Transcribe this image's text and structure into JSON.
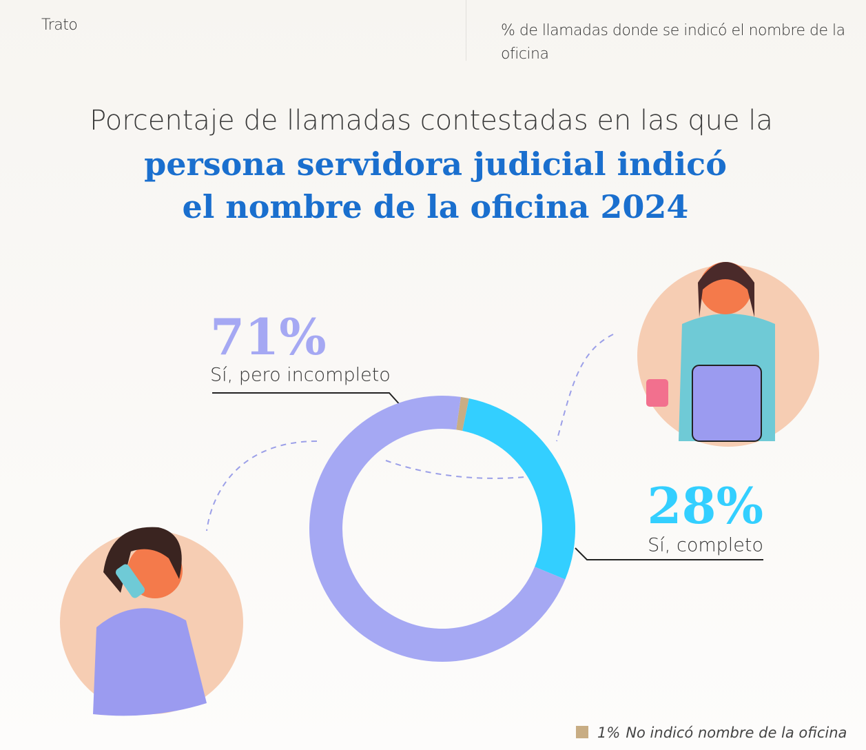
{
  "header": {
    "section": "Trato",
    "description": "% de llamadas donde se indicó el nombre de la oficina"
  },
  "chart_data": {
    "type": "donut",
    "title": [
      "Porcentaje de llamadas contestadas en las que la",
      "persona servidora judicial indicó",
      "el nombre de la oficina 2024"
    ],
    "categories": [
      "Sí, pero incompleto",
      "Sí, completo",
      "No indicó nombre de la oficina"
    ],
    "values": [
      71,
      28,
      1
    ],
    "value_labels": [
      "71%",
      "28%",
      "1%"
    ],
    "colors": [
      "#a5a8f3",
      "#33cfff",
      "#c8ad84"
    ]
  }
}
